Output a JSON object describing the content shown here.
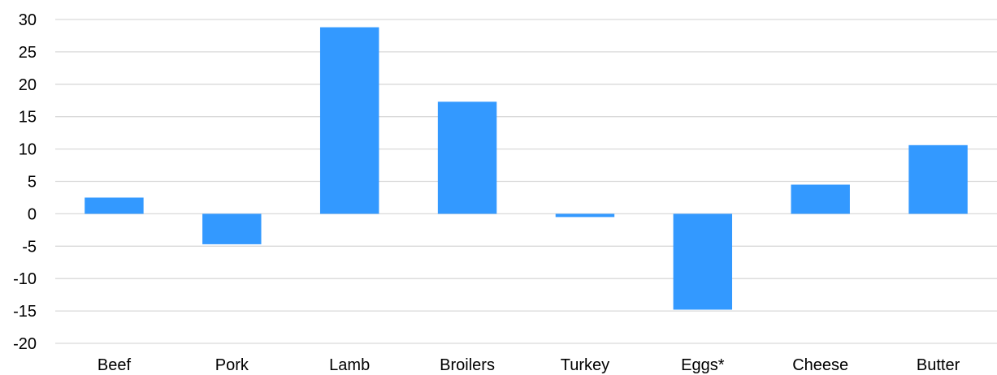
{
  "chart_data": {
    "type": "bar",
    "title": "",
    "xlabel": "",
    "ylabel": "",
    "categories": [
      "Beef",
      "Pork",
      "Lamb",
      "Broilers",
      "Turkey",
      "Eggs*",
      "Cheese",
      "Butter"
    ],
    "values": [
      2.5,
      -4.7,
      28.8,
      17.3,
      -0.5,
      -14.8,
      4.5,
      10.6
    ],
    "ylim": [
      -20,
      30
    ],
    "yticks": [
      "30",
      "25",
      "20",
      "15",
      "10",
      "5",
      "0",
      "-5",
      "-10",
      "-15",
      "-20"
    ],
    "grid": true,
    "legend": "none",
    "colors": {
      "bar": "#3399ff",
      "grid": "#d9d9d9"
    }
  }
}
